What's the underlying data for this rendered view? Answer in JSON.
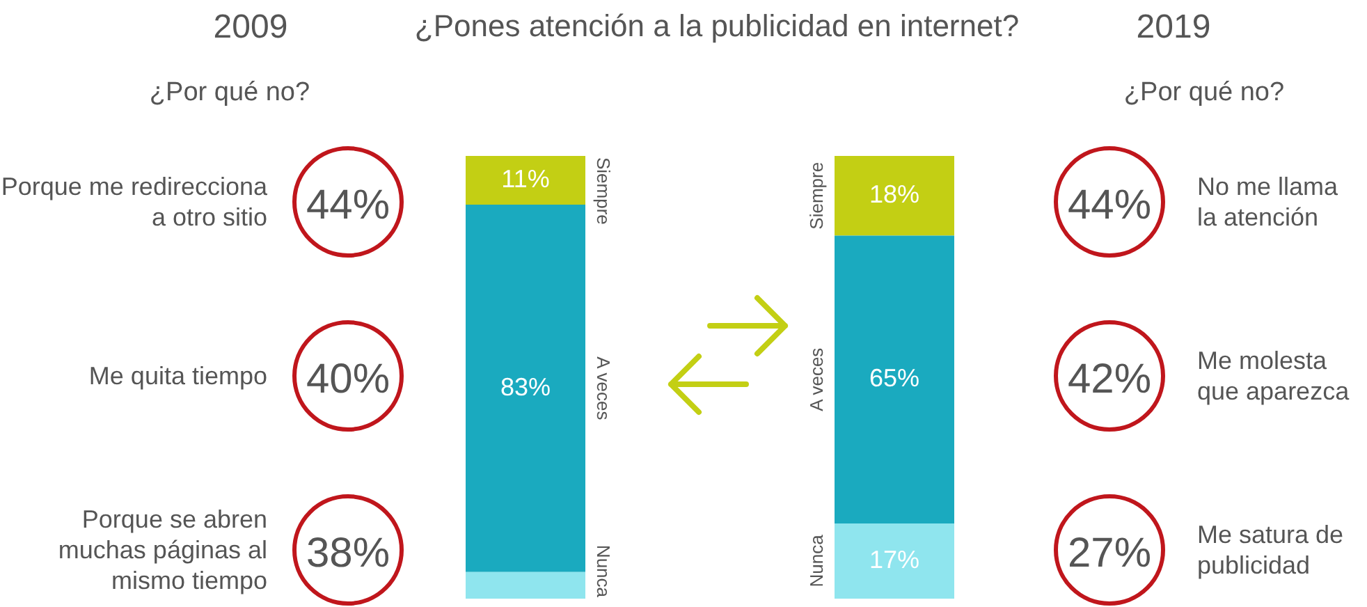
{
  "chart_data": [
    {
      "type": "other",
      "title": "2009",
      "subtitle": "¿Por qué no?",
      "categories": [
        "Porque me redirecciona a otro sitio",
        "Me quita tiempo",
        "Porque se abren muchas páginas al mismo tiempo"
      ],
      "value_labels": [
        "44%",
        "40%",
        "38%"
      ],
      "color": "#c0161c"
    },
    {
      "type": "bar",
      "stacked": true,
      "tick_labels": false,
      "title": "¿Pones atención a la publicidad en internet?",
      "categories": [
        null,
        null
      ],
      "series": [
        {
          "name": "Nunca",
          "color": "#8fe5ee",
          "values": [
            6,
            17
          ],
          "value_labels": [
            null,
            "17%"
          ]
        },
        {
          "name": "A veces",
          "color": "#1aaabf",
          "values": [
            83,
            65
          ],
          "value_labels": [
            "83%",
            "65%"
          ]
        },
        {
          "name": "Siempre",
          "color": "#c3cf14",
          "values": [
            11,
            18
          ],
          "value_labels": [
            "11%",
            "18%"
          ]
        }
      ]
    },
    {
      "type": "other",
      "title": "2019",
      "subtitle": "¿Por qué no?",
      "categories": [
        "No me llama la atención",
        "Me molesta que aparezca",
        "Me satura de publicidad"
      ],
      "value_labels": [
        "44%",
        "42%",
        "27%"
      ],
      "color": "#c0161c"
    }
  ]
}
